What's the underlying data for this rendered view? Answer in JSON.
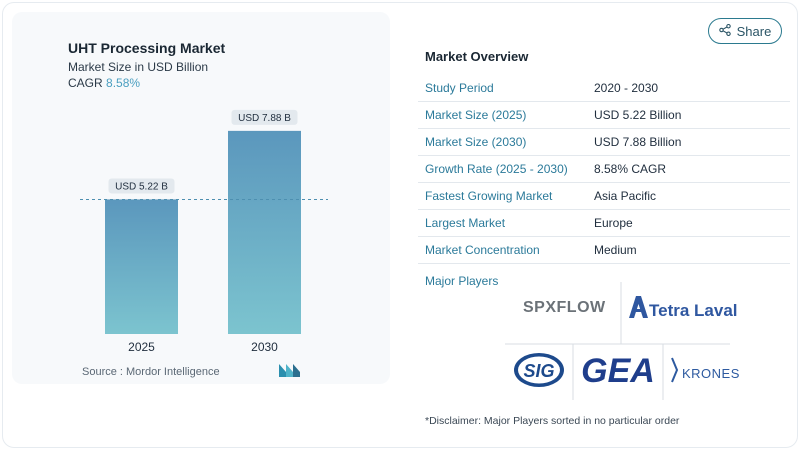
{
  "chart_data": {
    "type": "bar",
    "title": "UHT Processing Market",
    "subtitle": "Market Size in USD Billion",
    "cagr_label": "CAGR",
    "cagr_value": "8.58%",
    "categories": [
      "2025",
      "2030"
    ],
    "values": [
      5.22,
      7.88
    ],
    "value_labels": [
      "USD 5.22 B",
      "USD 7.88 B"
    ],
    "ylim": [
      0,
      9
    ],
    "grid": false,
    "reference_line": "dashed at 2025 value",
    "colors": [
      "#5b97bd",
      "#7cc4cf"
    ]
  },
  "source": "Source :  Mordor Intelligence",
  "share_label": "Share",
  "overview": {
    "title": "Market Overview",
    "rows": [
      {
        "label": "Study Period",
        "value": "2020 - 2030"
      },
      {
        "label": "Market Size (2025)",
        "value": "USD 5.22 Billion"
      },
      {
        "label": "Market Size (2030)",
        "value": "USD 7.88 Billion"
      },
      {
        "label": "Growth Rate (2025 - 2030)",
        "value": "8.58% CAGR"
      },
      {
        "label": "Fastest Growing Market",
        "value": "Asia Pacific"
      },
      {
        "label": "Largest Market",
        "value": "Europe"
      },
      {
        "label": "Market Concentration",
        "value": "Medium"
      }
    ]
  },
  "players": {
    "title": "Major Players",
    "logos": [
      "SPXFLOW",
      "Tetra Laval",
      "SIG",
      "GEA",
      "KRONES"
    ]
  },
  "disclaimer": "*Disclaimer: Major Players sorted in no particular order"
}
